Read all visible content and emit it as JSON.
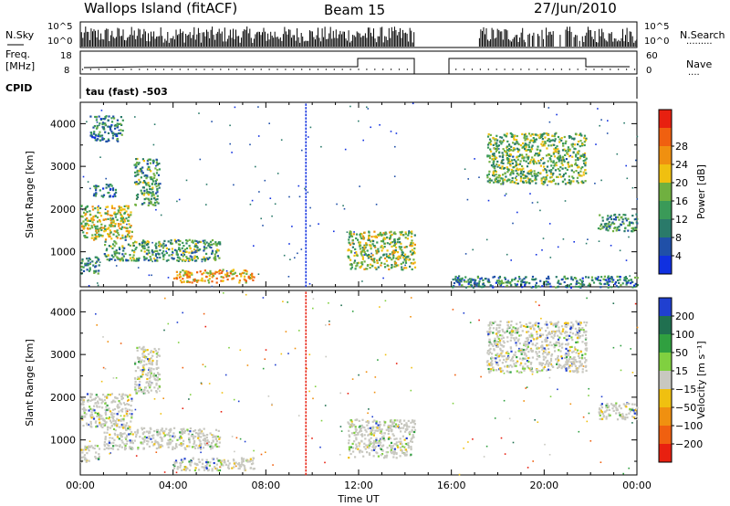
{
  "header": {
    "title": "Wallops Island (fitACF)",
    "beam": "Beam 15",
    "date": "27/Jun/2010"
  },
  "top_panels": {
    "nsky_label": "N.Sky",
    "nsky_ticks": [
      "10^5",
      "10^0"
    ],
    "nsearch_label": "N.Search",
    "nsearch_ticks": [
      "10^5",
      "10^0"
    ],
    "freq_label_line1": "Freq.",
    "freq_label_line2": "[MHz]",
    "freq_ticks": [
      "18",
      "8"
    ],
    "nave_label": "Nave",
    "nave_ticks": [
      "60",
      "0"
    ],
    "cpid_label": "CPID",
    "cpid_text": "tau (fast) -503"
  },
  "colors": {
    "power_scale": [
      "#1030e0",
      "#2050a8",
      "#2a7a6a",
      "#3a9a58",
      "#70b040",
      "#f0c010",
      "#f09010",
      "#f06010",
      "#e82010"
    ],
    "velocity_scale": [
      "#2040d0",
      "#207050",
      "#30a040",
      "#80d040",
      "#c8c8c0",
      "#f0c010",
      "#f09010",
      "#f06010",
      "#e82010"
    ]
  },
  "chart_data": [
    {
      "type": "heatmap",
      "title": "",
      "xlabel": "",
      "ylabel": "Slant Range [km]",
      "xlim": [
        "00:00",
        "24:00"
      ],
      "ylim": [
        180,
        4500
      ],
      "x_ticks": [
        "00:00",
        "04:00",
        "08:00",
        "12:00",
        "16:00",
        "20:00",
        "00:00"
      ],
      "y_ticks": [
        1000,
        2000,
        3000,
        4000
      ],
      "colorbar": {
        "label": "Power [dB]",
        "range": [
          0,
          32
        ],
        "ticks": [
          "4",
          "8",
          "12",
          "16",
          "20",
          "24",
          "28"
        ]
      },
      "data_gaps_hours": [
        [
          14.4,
          16.0
        ]
      ],
      "echo_regions": [
        {
          "t_start": 0.0,
          "t_end": 0.8,
          "range_start": 500,
          "range_end": 900,
          "power_dB": 10
        },
        {
          "t_start": 0.0,
          "t_end": 2.2,
          "range_start": 1300,
          "range_end": 2100,
          "power_dB": 18
        },
        {
          "t_start": 0.4,
          "t_end": 1.8,
          "range_start": 3600,
          "range_end": 4200,
          "power_dB": 8
        },
        {
          "t_start": 0.5,
          "t_end": 1.5,
          "range_start": 2300,
          "range_end": 2600,
          "power_dB": 8
        },
        {
          "t_start": 2.3,
          "t_end": 3.4,
          "range_start": 2100,
          "range_end": 3200,
          "power_dB": 12
        },
        {
          "t_start": 1.0,
          "t_end": 6.0,
          "range_start": 800,
          "range_end": 1300,
          "power_dB": 12
        },
        {
          "t_start": 4.0,
          "t_end": 7.5,
          "range_start": 300,
          "range_end": 600,
          "power_dB": 22
        },
        {
          "t_start": 11.5,
          "t_end": 14.4,
          "range_start": 600,
          "range_end": 1500,
          "power_dB": 16
        },
        {
          "t_start": 16.0,
          "t_end": 24.0,
          "range_start": 180,
          "range_end": 450,
          "power_dB": 8
        },
        {
          "t_start": 17.5,
          "t_end": 21.8,
          "range_start": 2600,
          "range_end": 3800,
          "power_dB": 14
        },
        {
          "t_start": 22.3,
          "t_end": 24.0,
          "range_start": 1500,
          "range_end": 1900,
          "power_dB": 10
        }
      ]
    },
    {
      "type": "heatmap",
      "title": "",
      "xlabel": "Time UT",
      "ylabel": "Slant Range [km]",
      "xlim": [
        "00:00",
        "24:00"
      ],
      "ylim": [
        180,
        4500
      ],
      "x_ticks": [
        "00:00",
        "04:00",
        "08:00",
        "12:00",
        "16:00",
        "20:00",
        "00:00"
      ],
      "y_ticks": [
        1000,
        2000,
        3000,
        4000
      ],
      "colorbar": {
        "label": "Velocity [m s⁻¹]",
        "range": [
          -250,
          250
        ],
        "ticks": [
          "200",
          "100",
          "50",
          "15",
          "−15",
          "−50",
          "−100",
          "−200"
        ]
      },
      "data_gaps_hours": [
        [
          14.4,
          16.0
        ]
      ],
      "echo_regions": [
        {
          "t_start": 0.0,
          "t_end": 0.8,
          "range_start": 500,
          "range_end": 900,
          "velocity": 0
        },
        {
          "t_start": 0.0,
          "t_end": 2.2,
          "range_start": 1300,
          "range_end": 2100,
          "velocity": 0
        },
        {
          "t_start": 2.3,
          "t_end": 3.4,
          "range_start": 2100,
          "range_end": 3200,
          "velocity": 0
        },
        {
          "t_start": 1.0,
          "t_end": 6.0,
          "range_start": 800,
          "range_end": 1300,
          "velocity": 0
        },
        {
          "t_start": 4.0,
          "t_end": 7.5,
          "range_start": 300,
          "range_end": 600,
          "velocity": 0
        },
        {
          "t_start": 11.5,
          "t_end": 14.4,
          "range_start": 600,
          "range_end": 1500,
          "velocity": 0
        },
        {
          "t_start": 17.5,
          "t_end": 21.8,
          "range_start": 2600,
          "range_end": 3800,
          "velocity": 0
        },
        {
          "t_start": 22.3,
          "t_end": 24.0,
          "range_start": 1500,
          "range_end": 1900,
          "velocity": 0
        }
      ]
    }
  ]
}
